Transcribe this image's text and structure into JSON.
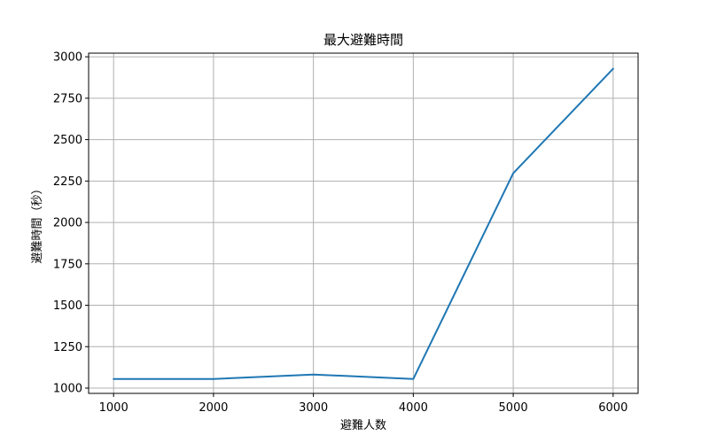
{
  "chart_data": {
    "type": "line",
    "title": "最大避難時間",
    "xlabel": "避難人数",
    "ylabel": "避難時間（秒）",
    "x": [
      1000,
      2000,
      3000,
      4000,
      5000,
      6000
    ],
    "series": [
      {
        "values": [
          1055,
          1055,
          1082,
          1055,
          2297,
          2928
        ]
      }
    ],
    "xticks": [
      1000,
      2000,
      3000,
      4000,
      5000,
      6000
    ],
    "yticks": [
      1000,
      1250,
      1500,
      1750,
      2000,
      2250,
      2500,
      2750,
      3000
    ],
    "xlim": [
      750,
      6250
    ],
    "ylim": [
      968,
      3022
    ],
    "grid": true,
    "line_color": "#1f77b4",
    "grid_color": "#b0b0b0"
  }
}
